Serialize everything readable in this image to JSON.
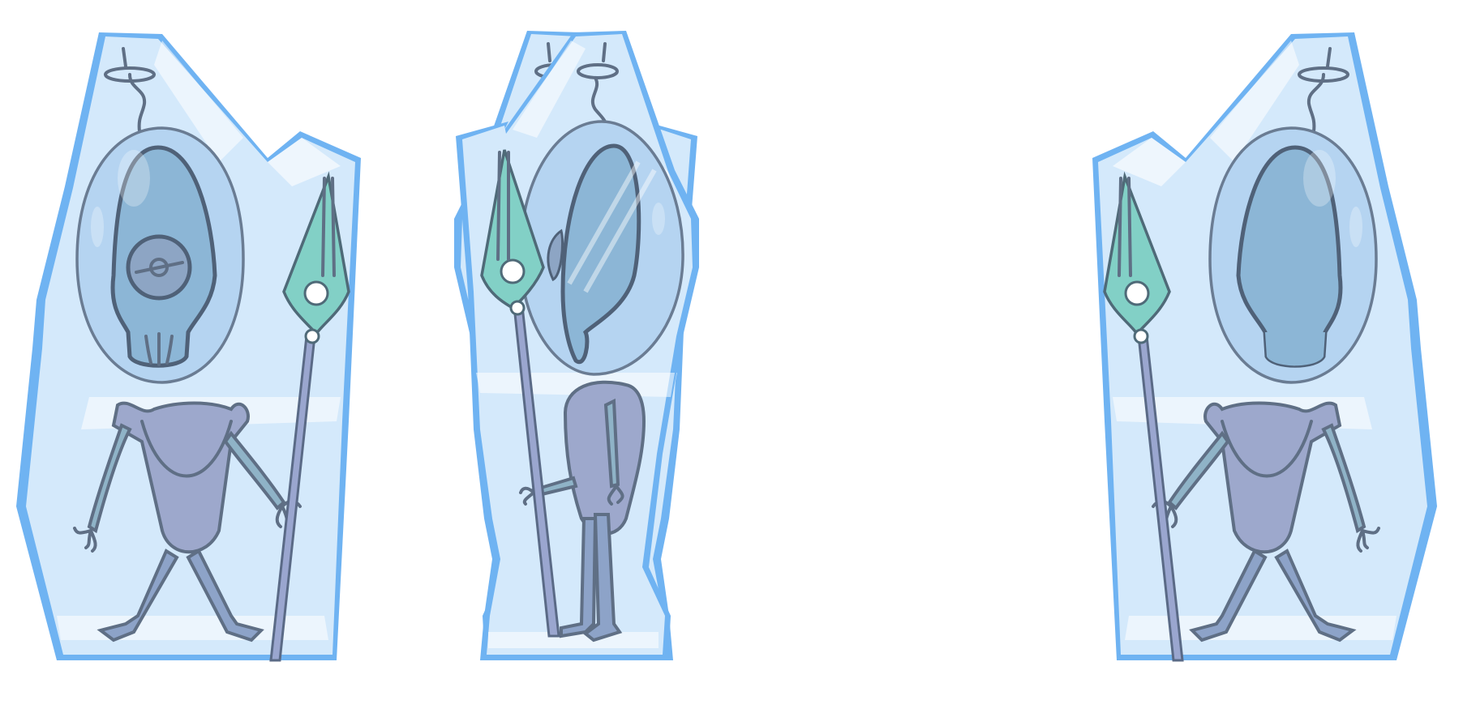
{
  "scene": {
    "background_color": "#ffffff",
    "ice_color": "#d4e9fb",
    "ice_shadow_color": "#6fb3f2",
    "creature_body_color": "#9da8cc",
    "spear_head_color": "#82d0c6"
  },
  "sprites": [
    {
      "view": "front",
      "facing": "forward",
      "holds": "spear-right",
      "has_shield": true
    },
    {
      "view": "side",
      "facing": "right",
      "holds": "spear-right",
      "has_shield": false
    },
    {
      "view": "side",
      "facing": "left",
      "holds": "spear-left",
      "has_shield": false
    },
    {
      "view": "back",
      "facing": "backward",
      "holds": "spear-left",
      "has_shield": false
    }
  ],
  "icons": [
    "frozen-alien-front-icon",
    "frozen-alien-side-icon",
    "frozen-alien-back-icon",
    "spear-icon",
    "shield-icon",
    "antenna-icon"
  ]
}
